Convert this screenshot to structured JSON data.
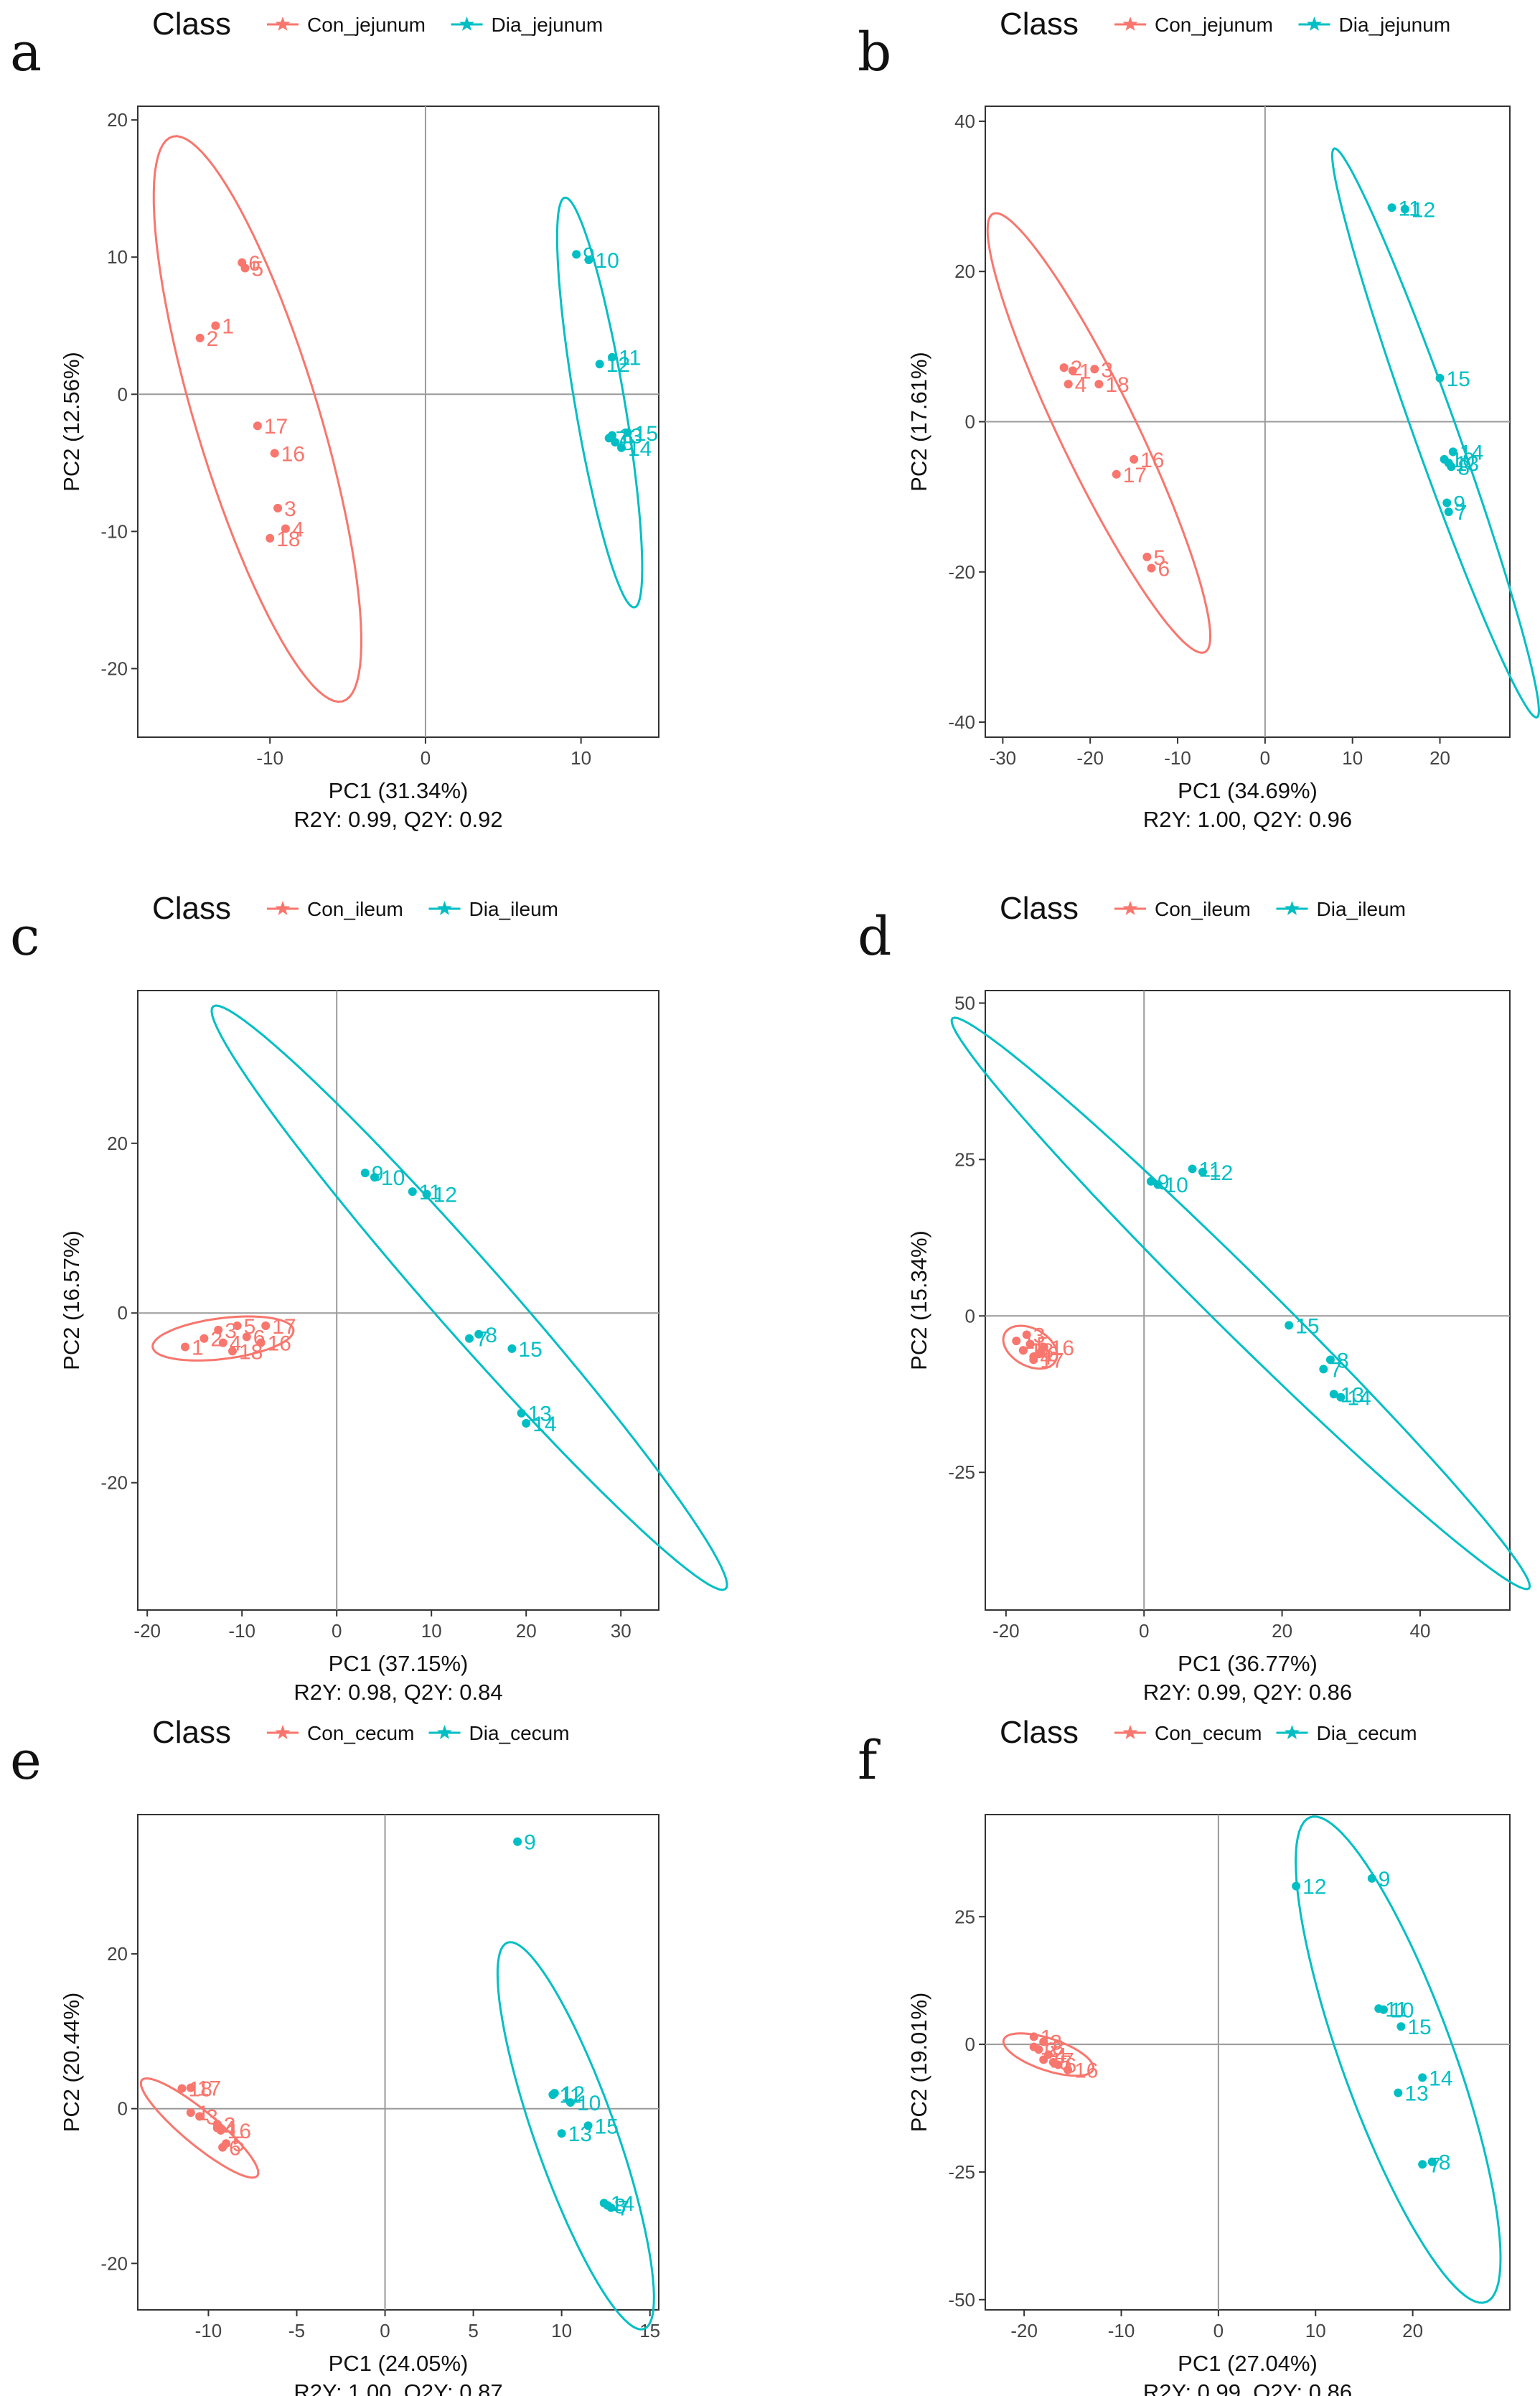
{
  "colors": {
    "con": "#F8766D",
    "dia": "#00BFC4",
    "ref_line": "#9a9a9a",
    "frame": "#333333"
  },
  "legend": {
    "title": "Class",
    "marker_icon": "star-icon"
  },
  "chart_data": [
    {
      "panel": "a",
      "type": "scatter",
      "title": "",
      "xlabel": "PC1 (31.34%)",
      "ylabel": "PC2 (12.56%)",
      "stats": "R2Y: 0.99, Q2Y: 0.92",
      "xlim": [
        -18.5,
        15
      ],
      "ylim": [
        -25,
        21
      ],
      "xticks": [
        -10,
        0,
        10
      ],
      "yticks": [
        -20,
        -10,
        0,
        10,
        20
      ],
      "series": [
        {
          "name": "Con_jejunum",
          "group": "con",
          "points": [
            {
              "label": "5",
              "x": -11.6,
              "y": 9.2
            },
            {
              "label": "6",
              "x": -11.8,
              "y": 9.6
            },
            {
              "label": "1",
              "x": -13.5,
              "y": 5.0
            },
            {
              "label": "2",
              "x": -14.5,
              "y": 4.1
            },
            {
              "label": "17",
              "x": -10.8,
              "y": -2.3
            },
            {
              "label": "16",
              "x": -9.7,
              "y": -4.3
            },
            {
              "label": "3",
              "x": -9.5,
              "y": -8.3
            },
            {
              "label": "4",
              "x": -9.0,
              "y": -9.8
            },
            {
              "label": "18",
              "x": -10.0,
              "y": -10.5
            }
          ],
          "ellipse": {
            "center": [
              -10.8,
              -1.8
            ],
            "semi_a": 21.3,
            "semi_b": 4.0,
            "angle_deg": -75.2
          }
        },
        {
          "name": "Dia_jejunum",
          "group": "dia",
          "points": [
            {
              "label": "9",
              "x": 9.7,
              "y": 10.2
            },
            {
              "label": "10",
              "x": 10.5,
              "y": 9.8
            },
            {
              "label": "11",
              "x": 12.0,
              "y": 2.7
            },
            {
              "label": "12",
              "x": 11.2,
              "y": 2.2
            },
            {
              "label": "13",
              "x": 12.0,
              "y": -3.0
            },
            {
              "label": "15",
              "x": 13.0,
              "y": -2.8
            },
            {
              "label": "14",
              "x": 12.6,
              "y": -3.9
            },
            {
              "label": "8",
              "x": 12.2,
              "y": -3.5
            },
            {
              "label": "7",
              "x": 11.8,
              "y": -3.2
            }
          ],
          "ellipse": {
            "center": [
              11.2,
              -0.6
            ],
            "semi_a": 15.1,
            "semi_b": 1.6,
            "angle_deg": -81.5
          }
        }
      ]
    },
    {
      "panel": "b",
      "type": "scatter",
      "title": "",
      "xlabel": "PC1 (34.69%)",
      "ylabel": "PC2 (17.61%)",
      "stats": "R2Y: 1.00, Q2Y: 0.96",
      "xlim": [
        -32,
        28
      ],
      "ylim": [
        -42,
        42
      ],
      "xticks": [
        -30,
        -20,
        -10,
        0,
        10,
        20
      ],
      "yticks": [
        -40,
        -20,
        0,
        20,
        40
      ],
      "series": [
        {
          "name": "Con_jejunum",
          "group": "con",
          "points": [
            {
              "label": "2",
              "x": -23.0,
              "y": 7.2
            },
            {
              "label": "1",
              "x": -22.0,
              "y": 6.8
            },
            {
              "label": "4",
              "x": -22.5,
              "y": 5.0
            },
            {
              "label": "3",
              "x": -19.5,
              "y": 7.0
            },
            {
              "label": "18",
              "x": -19.0,
              "y": 5.0
            },
            {
              "label": "16",
              "x": -15.0,
              "y": -5.0
            },
            {
              "label": "17",
              "x": -17.0,
              "y": -7.0
            },
            {
              "label": "5",
              "x": -13.5,
              "y": -18.0
            },
            {
              "label": "6",
              "x": -13.0,
              "y": -19.5
            }
          ],
          "ellipse": {
            "center": [
              -19.0,
              -1.5
            ],
            "semi_a": 31.6,
            "semi_b": 4.5,
            "angle_deg": -67.6
          }
        },
        {
          "name": "Dia_jejunum",
          "group": "dia",
          "points": [
            {
              "label": "11",
              "x": 14.5,
              "y": 28.5
            },
            {
              "label": "12",
              "x": 16.0,
              "y": 28.3
            },
            {
              "label": "15",
              "x": 20.0,
              "y": 5.8
            },
            {
              "label": "14",
              "x": 21.5,
              "y": -4.0
            },
            {
              "label": "13",
              "x": 21.0,
              "y": -5.5
            },
            {
              "label": "10",
              "x": 20.5,
              "y": -5.0
            },
            {
              "label": "8",
              "x": 21.3,
              "y": -6.0
            },
            {
              "label": "9",
              "x": 20.8,
              "y": -10.8
            },
            {
              "label": "7",
              "x": 21.0,
              "y": -12.0
            }
          ],
          "ellipse": {
            "center": [
              19.5,
              -1.5
            ],
            "semi_a": 39.6,
            "semi_b": 2.5,
            "angle_deg": -73.0
          }
        }
      ]
    },
    {
      "panel": "c",
      "type": "scatter",
      "title": "",
      "xlabel": "PC1 (37.15%)",
      "ylabel": "PC2 (16.57%)",
      "stats": "R2Y: 0.98, Q2Y: 0.84",
      "xlim": [
        -21,
        34
      ],
      "ylim": [
        -35,
        38
      ],
      "xticks": [
        -20,
        -10,
        0,
        10,
        20,
        30
      ],
      "yticks": [
        -20,
        0,
        20
      ],
      "series": [
        {
          "name": "Con_ileum",
          "group": "con",
          "points": [
            {
              "label": "1",
              "x": -16.0,
              "y": -4.0
            },
            {
              "label": "2",
              "x": -14.0,
              "y": -3.0
            },
            {
              "label": "3",
              "x": -12.5,
              "y": -2.0
            },
            {
              "label": "4",
              "x": -12.0,
              "y": -3.5
            },
            {
              "label": "5",
              "x": -10.5,
              "y": -1.5
            },
            {
              "label": "6",
              "x": -9.5,
              "y": -2.8
            },
            {
              "label": "16",
              "x": -8.0,
              "y": -3.5
            },
            {
              "label": "17",
              "x": -7.5,
              "y": -1.5
            },
            {
              "label": "18",
              "x": -11.0,
              "y": -4.5
            }
          ],
          "ellipse": {
            "center": [
              -12.0,
              -3.0
            ],
            "semi_a": 7.5,
            "semi_b": 2.4,
            "angle_deg": 8.0
          }
        },
        {
          "name": "Dia_ileum",
          "group": "dia",
          "points": [
            {
              "label": "9",
              "x": 3.0,
              "y": 16.5
            },
            {
              "label": "10",
              "x": 4.0,
              "y": 16.0
            },
            {
              "label": "11",
              "x": 8.0,
              "y": 14.3
            },
            {
              "label": "12",
              "x": 9.5,
              "y": 14.0
            },
            {
              "label": "7",
              "x": 14.0,
              "y": -3.0
            },
            {
              "label": "8",
              "x": 15.0,
              "y": -2.5
            },
            {
              "label": "15",
              "x": 18.5,
              "y": -4.2
            },
            {
              "label": "13",
              "x": 19.5,
              "y": -11.8
            },
            {
              "label": "14",
              "x": 20.0,
              "y": -13.0
            }
          ],
          "ellipse": {
            "center": [
              14.0,
              1.8
            ],
            "semi_a": 43.7,
            "semi_b": 4.0,
            "angle_deg": -51.8
          }
        }
      ]
    },
    {
      "panel": "d",
      "type": "scatter",
      "title": "",
      "xlabel": "PC1 (36.77%)",
      "ylabel": "PC2 (15.34%)",
      "stats": "R2Y: 0.99, Q2Y: 0.86",
      "xlim": [
        -23,
        53
      ],
      "ylim": [
        -47,
        52
      ],
      "xticks": [
        -20,
        0,
        20,
        40
      ],
      "yticks": [
        -25,
        0,
        25,
        50
      ],
      "series": [
        {
          "name": "Con_ileum",
          "group": "con",
          "points": [
            {
              "label": "1",
              "x": -18.5,
              "y": -4.0
            },
            {
              "label": "2",
              "x": -17.5,
              "y": -5.5
            },
            {
              "label": "3",
              "x": -17.0,
              "y": -3.0
            },
            {
              "label": "4",
              "x": -16.0,
              "y": -6.5
            },
            {
              "label": "5",
              "x": -16.5,
              "y": -4.5
            },
            {
              "label": "6",
              "x": -15.0,
              "y": -6.0
            },
            {
              "label": "16",
              "x": -14.5,
              "y": -5.0
            },
            {
              "label": "17",
              "x": -16.0,
              "y": -7.0
            },
            {
              "label": "18",
              "x": -17.5,
              "y": -5.5
            }
          ],
          "ellipse": {
            "center": [
              -16.5,
              -5.0
            ],
            "semi_a": 4.3,
            "semi_b": 2.9,
            "angle_deg": -35.0
          }
        },
        {
          "name": "Dia_ileum",
          "group": "dia",
          "points": [
            {
              "label": "9",
              "x": 1.0,
              "y": 21.5
            },
            {
              "label": "10",
              "x": 2.0,
              "y": 21.0
            },
            {
              "label": "11",
              "x": 7.0,
              "y": 23.5
            },
            {
              "label": "12",
              "x": 8.5,
              "y": 23.0
            },
            {
              "label": "15",
              "x": 21.0,
              "y": -1.5
            },
            {
              "label": "7",
              "x": 26.0,
              "y": -8.5
            },
            {
              "label": "8",
              "x": 27.0,
              "y": -7.0
            },
            {
              "label": "13",
              "x": 27.5,
              "y": -12.5
            },
            {
              "label": "14",
              "x": 28.5,
              "y": -13.0
            }
          ],
          "ellipse": {
            "center": [
              14.0,
              2.0
            ],
            "semi_a": 61.8,
            "semi_b": 4.5,
            "angle_deg": -47.5
          }
        }
      ]
    },
    {
      "panel": "e",
      "type": "scatter",
      "title": "",
      "xlabel": "PC1 (24.05%)",
      "ylabel": "PC2 (20.44%)",
      "stats": "R2Y: 1.00, Q2Y: 0.87",
      "xlim": [
        -14,
        15.5
      ],
      "ylim": [
        -26,
        38
      ],
      "xticks": [
        -10,
        -5,
        0,
        5,
        10,
        15
      ],
      "yticks": [
        -20,
        0,
        20
      ],
      "series": [
        {
          "name": "Con_cecum",
          "group": "con",
          "points": [
            {
              "label": "17",
              "x": -11.0,
              "y": 2.7
            },
            {
              "label": "18",
              "x": -11.5,
              "y": 2.6
            },
            {
              "label": "1",
              "x": -11.0,
              "y": -0.5
            },
            {
              "label": "3",
              "x": -10.5,
              "y": -1.0
            },
            {
              "label": "2",
              "x": -9.5,
              "y": -2.0
            },
            {
              "label": "4",
              "x": -9.5,
              "y": -2.5
            },
            {
              "label": "16",
              "x": -9.3,
              "y": -2.8
            },
            {
              "label": "5",
              "x": -9.0,
              "y": -4.5
            },
            {
              "label": "6",
              "x": -9.2,
              "y": -5.0
            }
          ],
          "ellipse": {
            "center": [
              -10.5,
              -2.5
            ],
            "semi_a": 7.1,
            "semi_b": 1.3,
            "angle_deg": -64.0
          }
        },
        {
          "name": "Dia_cecum",
          "group": "dia",
          "points": [
            {
              "label": "9",
              "x": 7.5,
              "y": 34.5
            },
            {
              "label": "11",
              "x": 9.5,
              "y": 1.8
            },
            {
              "label": "12",
              "x": 9.6,
              "y": 2.0
            },
            {
              "label": "10",
              "x": 10.5,
              "y": 0.8
            },
            {
              "label": "15",
              "x": 11.5,
              "y": -2.2
            },
            {
              "label": "13",
              "x": 10.0,
              "y": -3.2
            },
            {
              "label": "8",
              "x": 12.6,
              "y": -12.5
            },
            {
              "label": "7",
              "x": 12.8,
              "y": -12.8
            },
            {
              "label": "14",
              "x": 12.4,
              "y": -12.2
            }
          ],
          "ellipse": {
            "center": [
              10.8,
              -3.5
            ],
            "semi_a": 25.3,
            "semi_b": 2.4,
            "angle_deg": -81.5
          }
        }
      ]
    },
    {
      "panel": "f",
      "type": "scatter",
      "title": "",
      "xlabel": "PC1 (27.04%)",
      "ylabel": "PC2 (19.01%)",
      "stats": "R2Y: 0.99, Q2Y: 0.86",
      "xlim": [
        -24,
        30
      ],
      "ylim": [
        -52,
        45
      ],
      "xticks": [
        -20,
        -10,
        0,
        10,
        20
      ],
      "yticks": [
        -50,
        -25,
        0,
        25
      ],
      "series": [
        {
          "name": "Con_cecum",
          "group": "con",
          "points": [
            {
              "label": "1",
              "x": -19.0,
              "y": 1.5
            },
            {
              "label": "2",
              "x": -18.5,
              "y": -1.0
            },
            {
              "label": "3",
              "x": -18.0,
              "y": 0.5
            },
            {
              "label": "4",
              "x": -17.5,
              "y": -2.0
            },
            {
              "label": "5",
              "x": -17.0,
              "y": -3.5
            },
            {
              "label": "6",
              "x": -16.5,
              "y": -4.0
            },
            {
              "label": "16",
              "x": -15.5,
              "y": -5.0
            },
            {
              "label": "17",
              "x": -18.0,
              "y": -3.0
            },
            {
              "label": "18",
              "x": -19.0,
              "y": -0.5
            }
          ],
          "ellipse": {
            "center": [
              -17.5,
              -2.0
            ],
            "semi_a": 5.6,
            "semi_b": 2.7,
            "angle_deg": -40.0
          }
        },
        {
          "name": "Dia_cecum",
          "group": "dia",
          "points": [
            {
              "label": "12",
              "x": 8.0,
              "y": 31.0
            },
            {
              "label": "9",
              "x": 15.8,
              "y": 32.5
            },
            {
              "label": "11",
              "x": 16.5,
              "y": 7.0
            },
            {
              "label": "10",
              "x": 17.0,
              "y": 6.8
            },
            {
              "label": "15",
              "x": 18.8,
              "y": 3.5
            },
            {
              "label": "14",
              "x": 21.0,
              "y": -6.5
            },
            {
              "label": "13",
              "x": 18.5,
              "y": -9.5
            },
            {
              "label": "7",
              "x": 21.0,
              "y": -23.5
            },
            {
              "label": "8",
              "x": 22.0,
              "y": -23.0
            }
          ],
          "ellipse": {
            "center": [
              18.5,
              -3.0
            ],
            "semi_a": 48.4,
            "semi_b": 6.0,
            "angle_deg": -79.6
          }
        }
      ]
    }
  ]
}
